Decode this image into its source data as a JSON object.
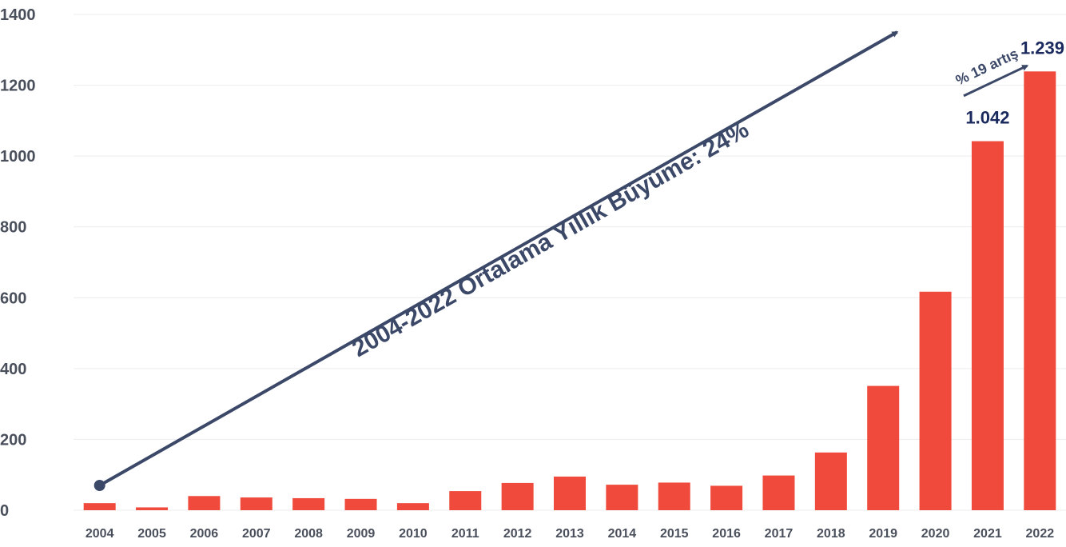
{
  "chart_data": {
    "type": "bar",
    "categories": [
      "2004",
      "2005",
      "2006",
      "2007",
      "2008",
      "2009",
      "2010",
      "2011",
      "2012",
      "2013",
      "2014",
      "2015",
      "2016",
      "2017",
      "2018",
      "2019",
      "2020",
      "2021",
      "2022"
    ],
    "values": [
      20,
      8,
      40,
      36,
      34,
      32,
      20,
      54,
      77,
      95,
      72,
      78,
      69,
      98,
      163,
      351,
      617,
      1042,
      1239
    ],
    "ylim": [
      0,
      1400
    ],
    "yticks": [
      0,
      200,
      400,
      600,
      800,
      1000,
      1200,
      1400
    ],
    "grid": true,
    "data_labels": [
      {
        "category": "2021",
        "text": "1.042"
      },
      {
        "category": "2022",
        "text": "1.239"
      }
    ],
    "annotations": {
      "trend": "2004-2022  Ortalama Yıllık Büyüme: 24%",
      "growth": "% 19 artış"
    }
  },
  "colors": {
    "bar": "#ef4a3c",
    "trend": "#3b4868",
    "label": "#1b2a5e",
    "axis_text": "#4a4f5c"
  }
}
